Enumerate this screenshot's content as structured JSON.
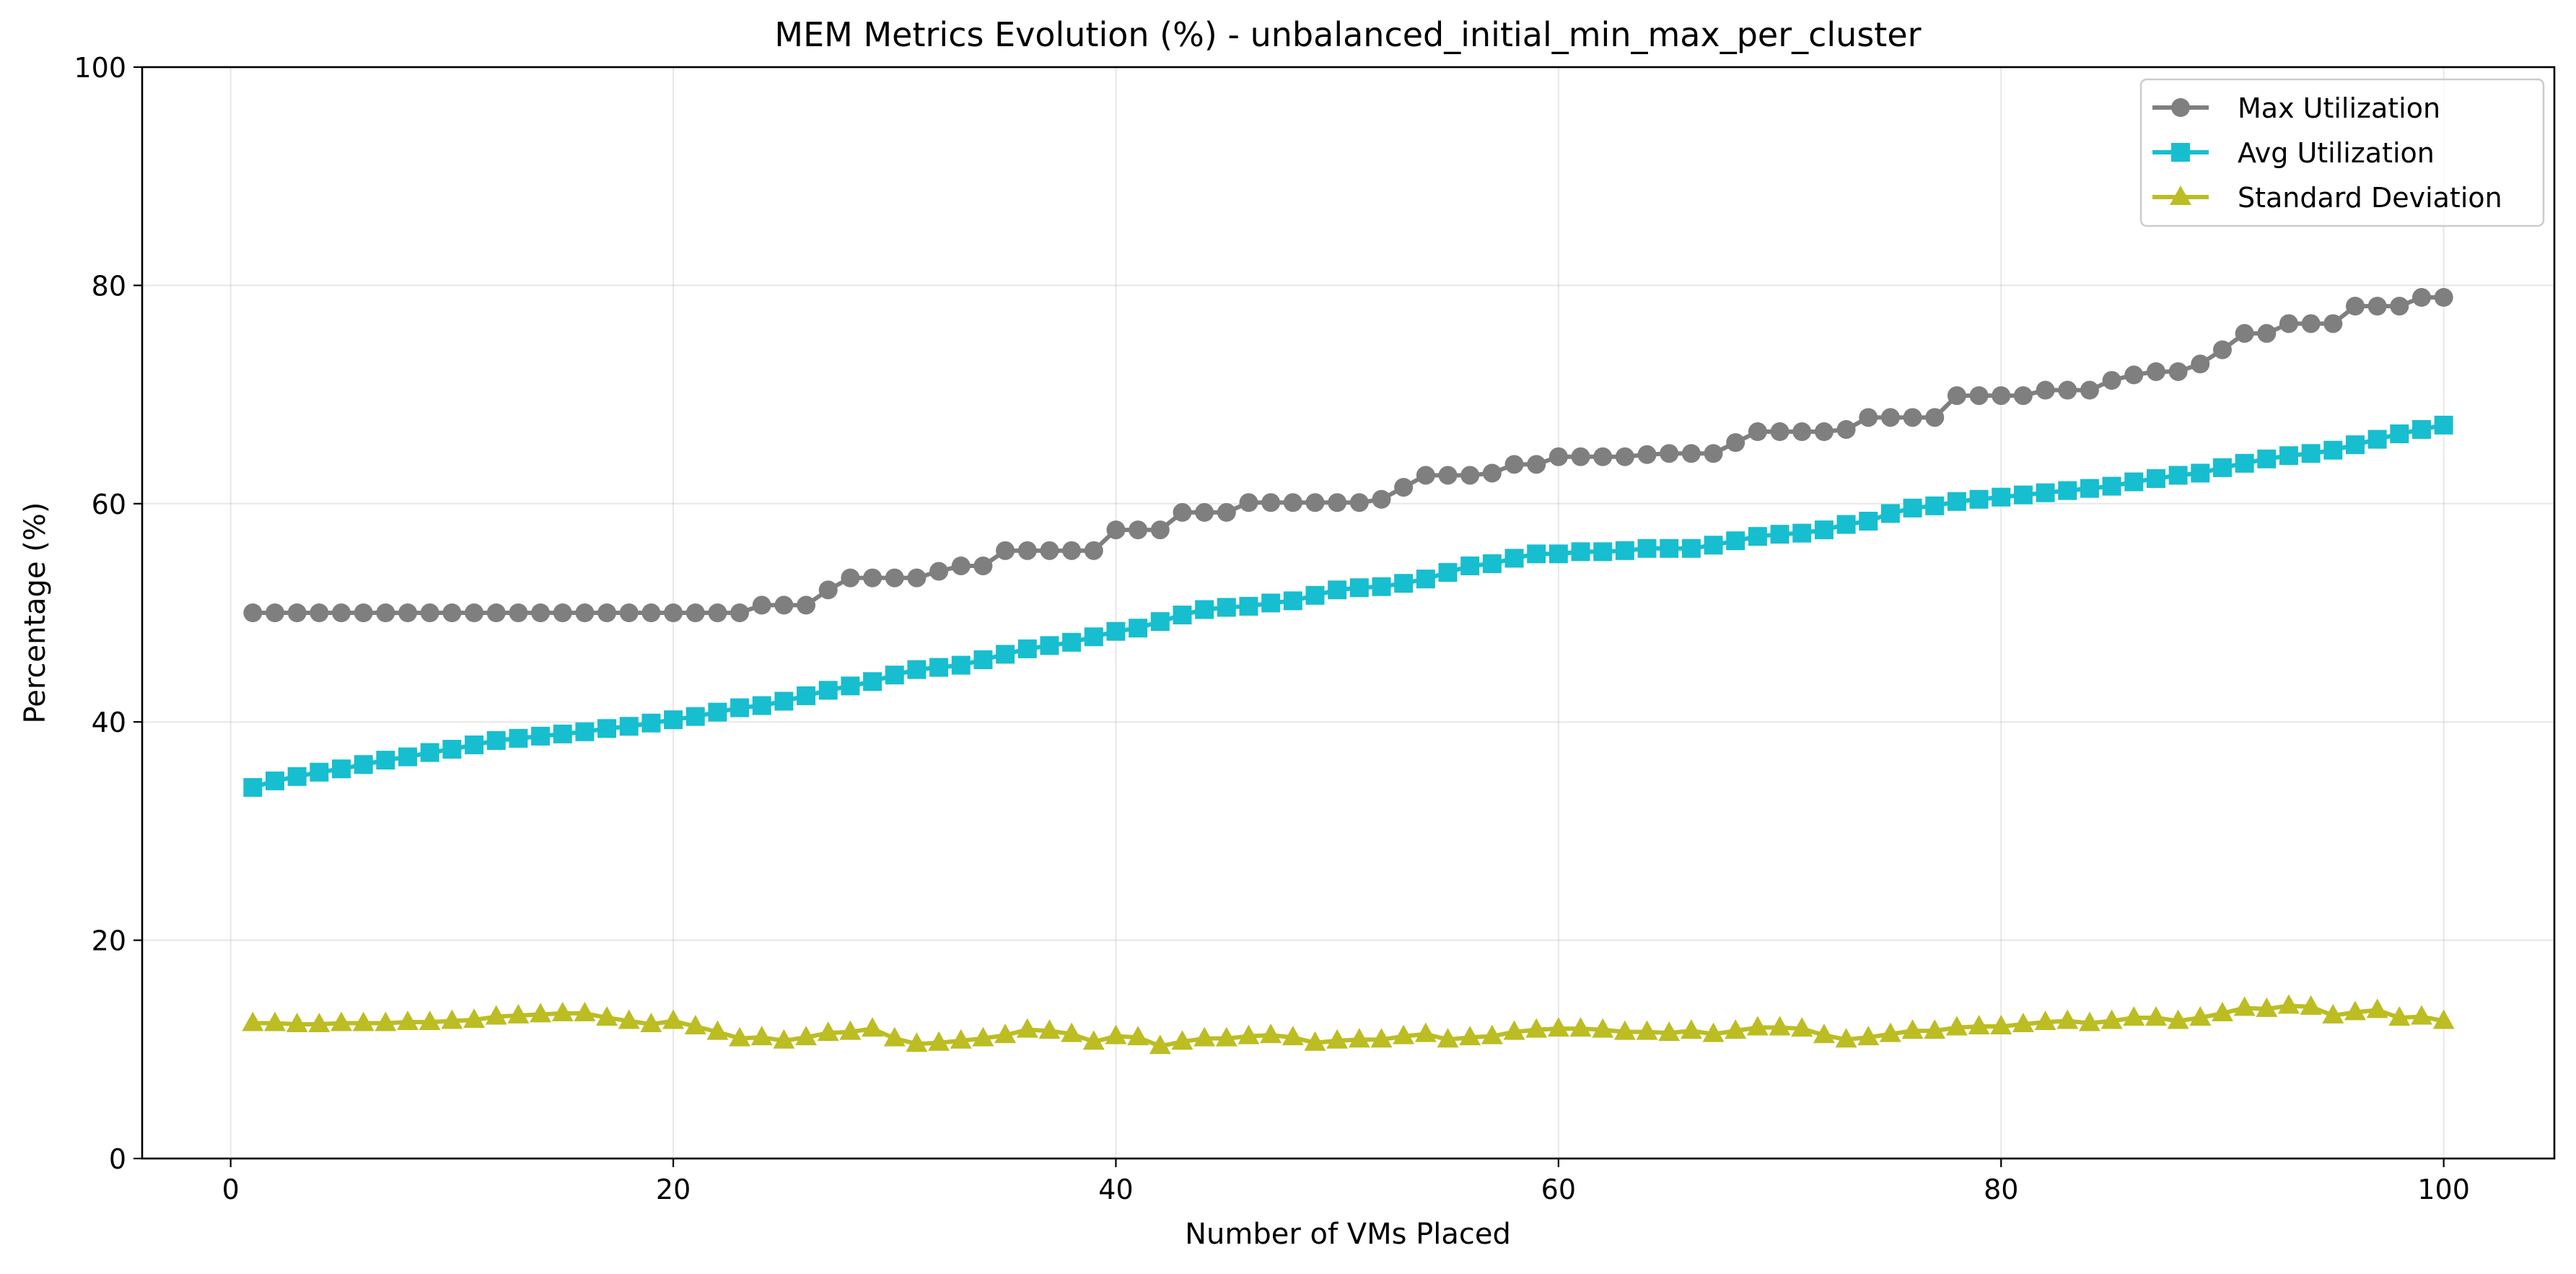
{
  "chart_data": {
    "type": "line",
    "title": "MEM Metrics Evolution (%) - unbalanced_initial_min_max_per_cluster",
    "xlabel": "Number of VMs Placed",
    "ylabel": "Percentage (%)",
    "xlim": [
      -4,
      105
    ],
    "ylim": [
      0,
      100
    ],
    "xticks": [
      0,
      20,
      40,
      60,
      80,
      100
    ],
    "yticks": [
      0,
      20,
      40,
      60,
      80,
      100
    ],
    "grid": true,
    "legend_position": "top-right",
    "x": [
      1,
      2,
      3,
      4,
      5,
      6,
      7,
      8,
      9,
      10,
      11,
      12,
      13,
      14,
      15,
      16,
      17,
      18,
      19,
      20,
      21,
      22,
      23,
      24,
      25,
      26,
      27,
      28,
      29,
      30,
      31,
      32,
      33,
      34,
      35,
      36,
      37,
      38,
      39,
      40,
      41,
      42,
      43,
      44,
      45,
      46,
      47,
      48,
      49,
      50,
      51,
      52,
      53,
      54,
      55,
      56,
      57,
      58,
      59,
      60,
      61,
      62,
      63,
      64,
      65,
      66,
      67,
      68,
      69,
      70,
      71,
      72,
      73,
      74,
      75,
      76,
      77,
      78,
      79,
      80,
      81,
      82,
      83,
      84,
      85,
      86,
      87,
      88,
      89,
      90,
      91,
      92,
      93,
      94,
      95,
      96,
      97,
      98,
      99,
      100
    ],
    "series": [
      {
        "name": "Max Utilization",
        "color": "#7f7f7f",
        "marker": "circle",
        "values": [
          50.0,
          50.0,
          50.0,
          50.0,
          50.0,
          50.0,
          50.0,
          50.0,
          50.0,
          50.0,
          50.0,
          50.0,
          50.0,
          50.0,
          50.0,
          50.0,
          50.0,
          50.0,
          50.0,
          50.0,
          50.0,
          50.0,
          50.0,
          50.7,
          50.7,
          50.7,
          52.1,
          53.2,
          53.2,
          53.2,
          53.2,
          53.8,
          54.3,
          54.3,
          55.7,
          55.7,
          55.7,
          55.7,
          55.7,
          57.6,
          57.6,
          57.6,
          59.2,
          59.2,
          59.2,
          60.1,
          60.1,
          60.1,
          60.1,
          60.1,
          60.1,
          60.4,
          61.5,
          62.6,
          62.6,
          62.6,
          62.8,
          63.6,
          63.6,
          64.3,
          64.3,
          64.3,
          64.3,
          64.5,
          64.6,
          64.6,
          64.6,
          65.6,
          66.6,
          66.6,
          66.6,
          66.6,
          66.8,
          67.9,
          67.9,
          67.9,
          67.9,
          69.9,
          69.9,
          69.9,
          69.9,
          70.4,
          70.4,
          70.4,
          71.3,
          71.8,
          72.1,
          72.1,
          72.8,
          74.1,
          75.6,
          75.6,
          76.5,
          76.5,
          76.5,
          78.1,
          78.1,
          78.1,
          78.9,
          78.9
        ]
      },
      {
        "name": "Avg Utilization",
        "color": "#17becf",
        "marker": "square",
        "values": [
          34.0,
          34.6,
          35.0,
          35.4,
          35.7,
          36.1,
          36.5,
          36.8,
          37.2,
          37.5,
          37.9,
          38.3,
          38.5,
          38.7,
          38.9,
          39.1,
          39.4,
          39.6,
          39.9,
          40.2,
          40.5,
          40.9,
          41.3,
          41.5,
          41.9,
          42.4,
          42.9,
          43.3,
          43.7,
          44.3,
          44.8,
          45.0,
          45.2,
          45.7,
          46.2,
          46.7,
          47.0,
          47.3,
          47.8,
          48.3,
          48.6,
          49.2,
          49.8,
          50.3,
          50.5,
          50.6,
          50.9,
          51.1,
          51.6,
          52.1,
          52.3,
          52.4,
          52.7,
          53.1,
          53.7,
          54.3,
          54.5,
          55.0,
          55.4,
          55.4,
          55.6,
          55.6,
          55.7,
          55.9,
          55.9,
          55.9,
          56.2,
          56.6,
          57.0,
          57.2,
          57.3,
          57.6,
          58.1,
          58.4,
          59.1,
          59.6,
          59.8,
          60.2,
          60.4,
          60.6,
          60.8,
          61.0,
          61.2,
          61.4,
          61.6,
          62.0,
          62.3,
          62.6,
          62.8,
          63.3,
          63.7,
          64.1,
          64.4,
          64.6,
          64.9,
          65.4,
          65.9,
          66.4,
          66.8,
          67.2
        ]
      },
      {
        "name": "Standard Deviation",
        "color": "#bcbd22",
        "marker": "triangle",
        "values": [
          12.4,
          12.4,
          12.3,
          12.3,
          12.4,
          12.4,
          12.4,
          12.5,
          12.5,
          12.6,
          12.7,
          13.0,
          13.1,
          13.2,
          13.3,
          13.3,
          12.9,
          12.6,
          12.3,
          12.6,
          12.1,
          11.6,
          11.0,
          11.1,
          10.8,
          11.1,
          11.5,
          11.6,
          11.9,
          11.0,
          10.5,
          10.6,
          10.8,
          11.0,
          11.3,
          11.8,
          11.7,
          11.4,
          10.7,
          11.2,
          11.1,
          10.3,
          10.7,
          11.0,
          11.0,
          11.2,
          11.3,
          11.1,
          10.6,
          10.8,
          10.9,
          10.9,
          11.2,
          11.4,
          10.9,
          11.1,
          11.2,
          11.6,
          11.8,
          11.9,
          11.9,
          11.8,
          11.6,
          11.6,
          11.5,
          11.7,
          11.4,
          11.7,
          12.0,
          12.0,
          11.9,
          11.3,
          10.9,
          11.1,
          11.4,
          11.7,
          11.7,
          12.0,
          12.1,
          12.1,
          12.3,
          12.5,
          12.6,
          12.4,
          12.6,
          12.9,
          12.9,
          12.6,
          12.9,
          13.3,
          13.8,
          13.7,
          14.0,
          13.9,
          13.1,
          13.4,
          13.6,
          12.9,
          13.0,
          12.6
        ]
      }
    ]
  }
}
